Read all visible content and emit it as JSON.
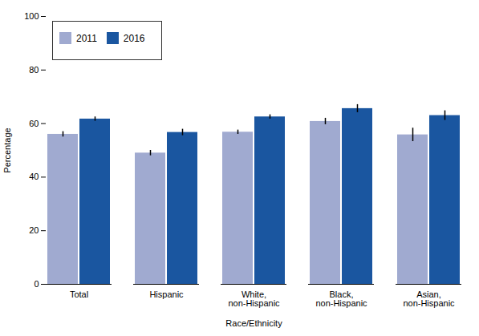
{
  "chart_data": {
    "type": "bar",
    "categories": [
      "Total",
      "Hispanic",
      "White,\nnon-Hispanic",
      "Black,\nnon-Hispanic",
      "Asian,\nnon-Hispanic"
    ],
    "series": [
      {
        "name": "2011",
        "color": "#a0aad0",
        "values": [
          56.0,
          49.0,
          56.8,
          60.8,
          55.8
        ],
        "errors": [
          1.0,
          1.0,
          0.8,
          1.2,
          2.5
        ]
      },
      {
        "name": "2016",
        "color": "#1a56a0",
        "values": [
          61.7,
          56.7,
          62.5,
          65.6,
          63.0
        ],
        "errors": [
          0.8,
          1.2,
          0.8,
          1.5,
          1.8
        ]
      }
    ],
    "xlabel": "Race/Ethnicity",
    "ylabel": "Percentage",
    "ylim": [
      0,
      100
    ],
    "yticks": [
      0,
      20,
      40,
      60,
      80,
      100
    ],
    "legend": "upper left"
  }
}
